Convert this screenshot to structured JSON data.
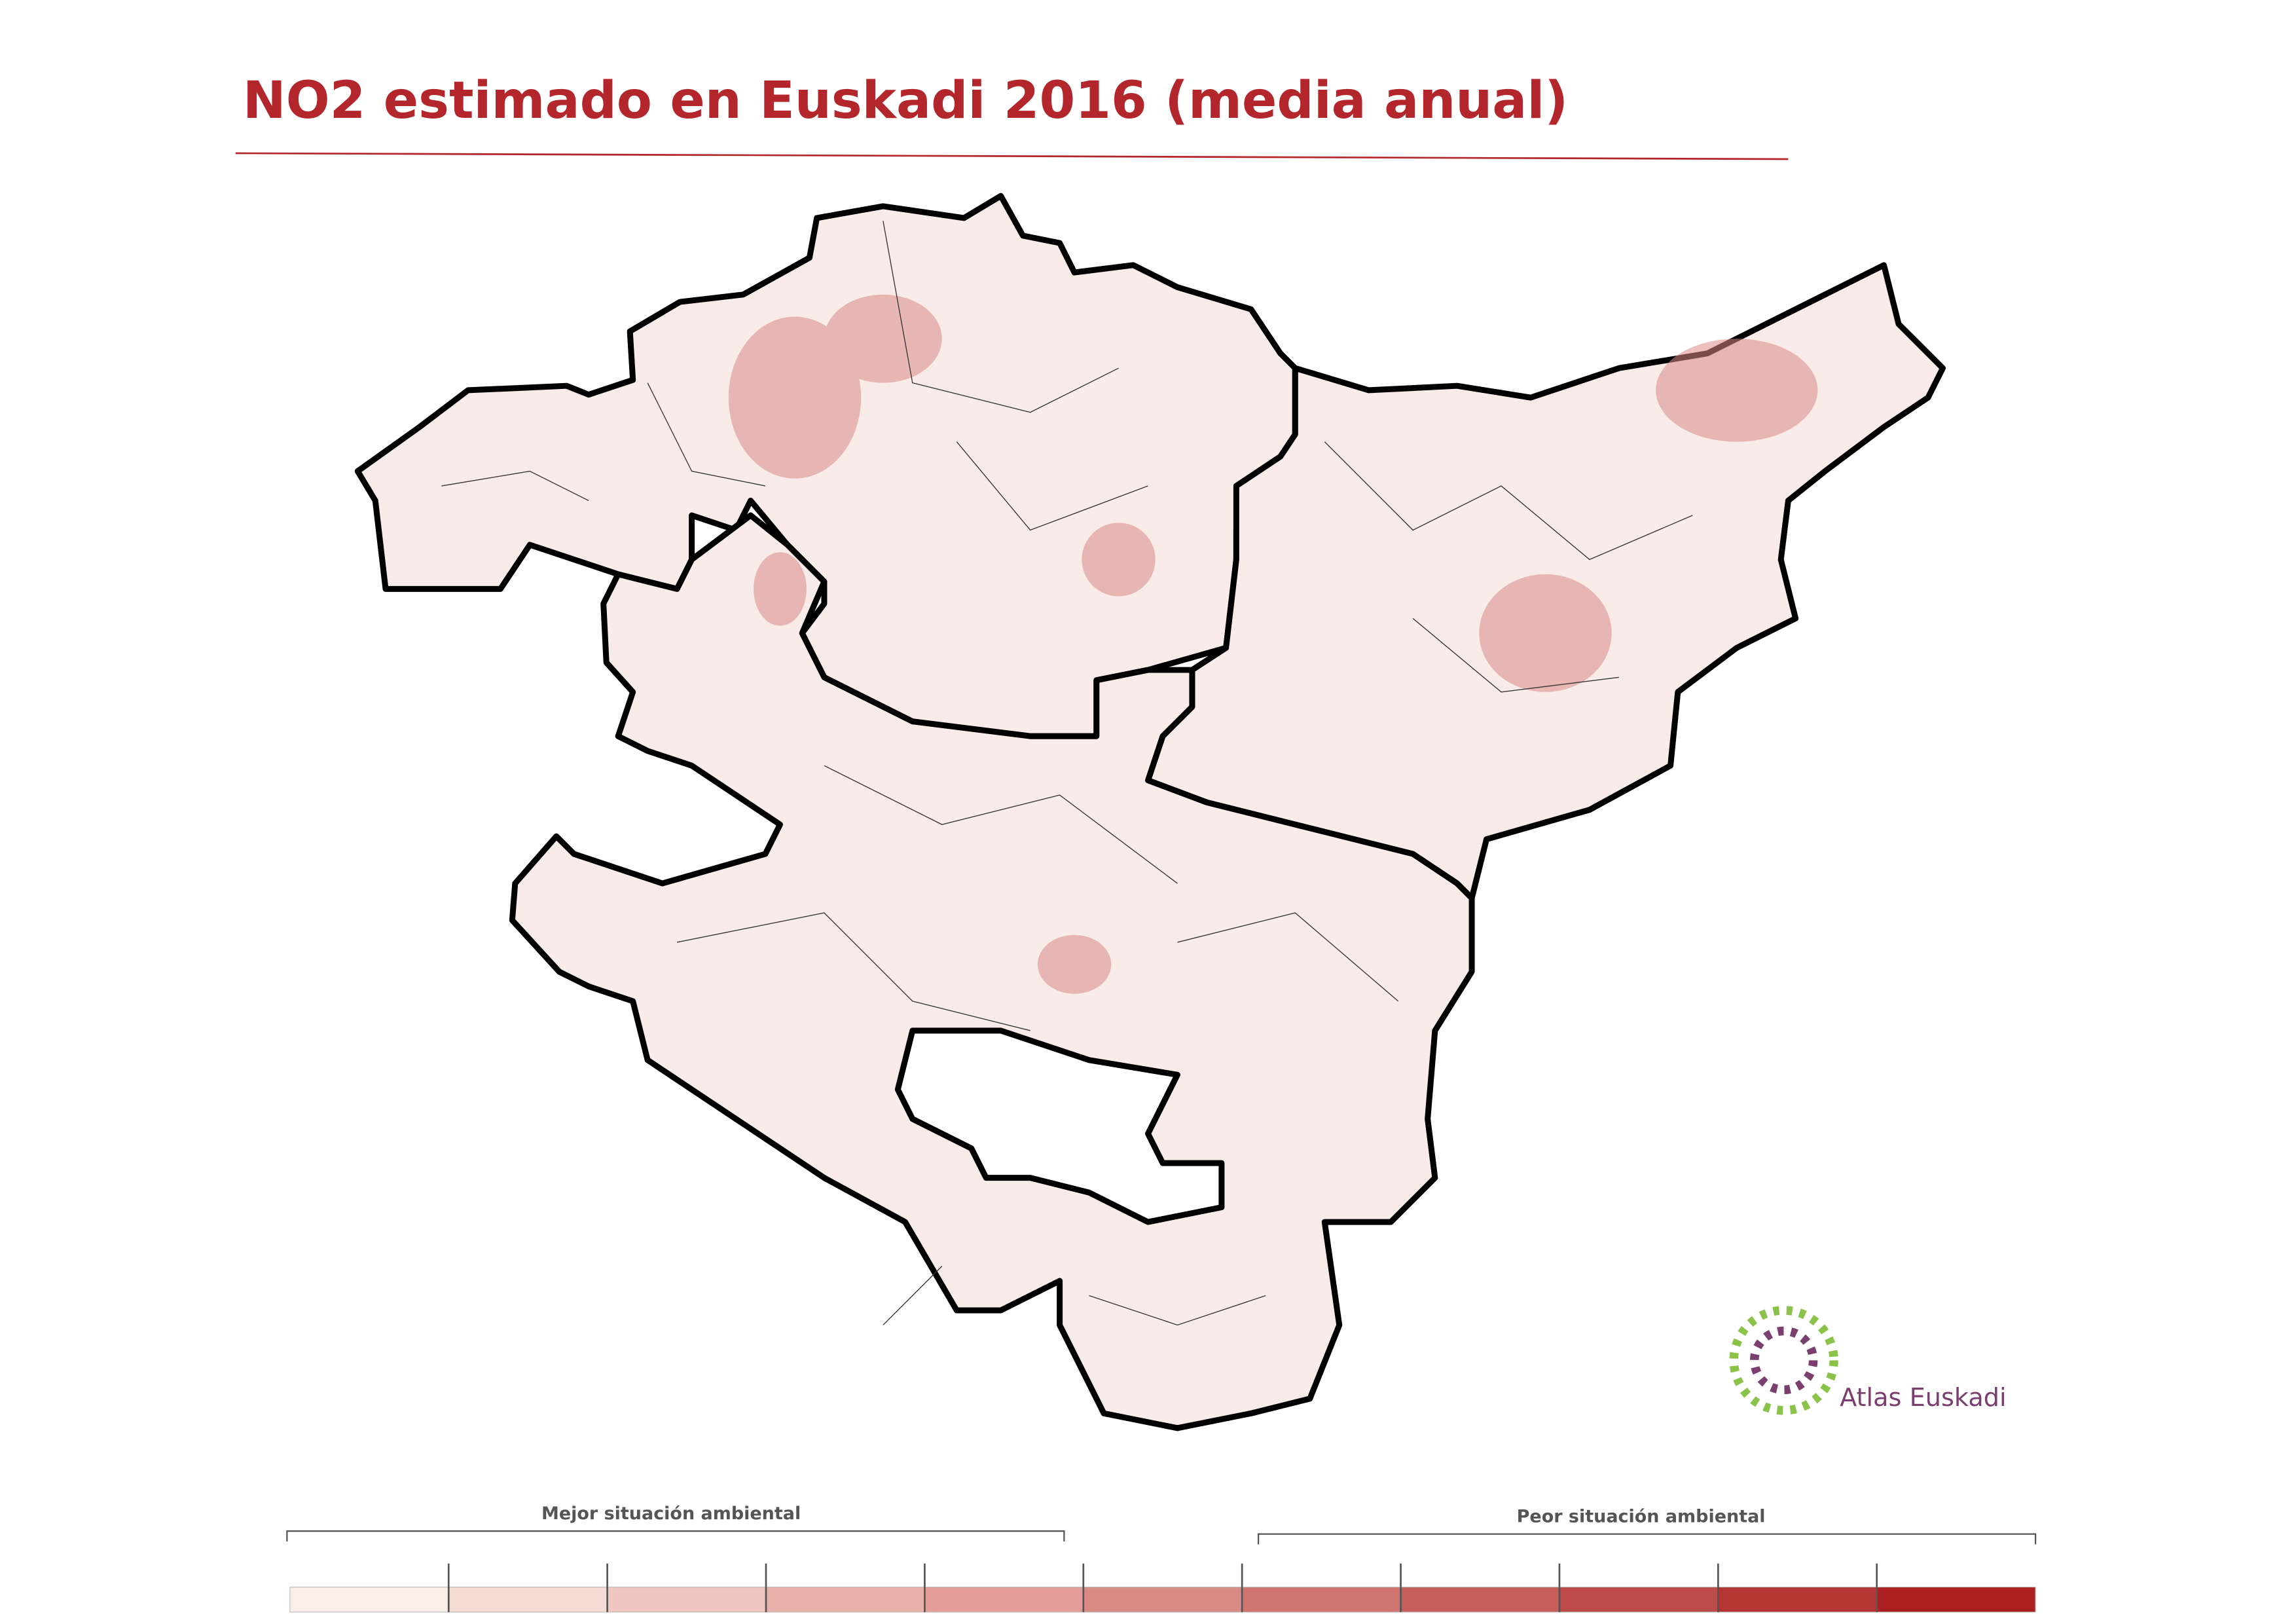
{
  "header": {
    "title": "NO2 estimado en Euskadi 2016 (media anual)"
  },
  "legend": {
    "low_label": "Mejor situación ambiental",
    "high_label": "Peor situación ambiental",
    "colors": [
      "#fbeee6",
      "#f5d9d3",
      "#efc6c0",
      "#e8b1ab",
      "#e29d98",
      "#da8a85",
      "#d07470",
      "#c65f5c",
      "#bc4b49",
      "#b33635",
      "#ab1f21"
    ]
  },
  "logo": {
    "text": "Atlas Euskadi"
  }
}
